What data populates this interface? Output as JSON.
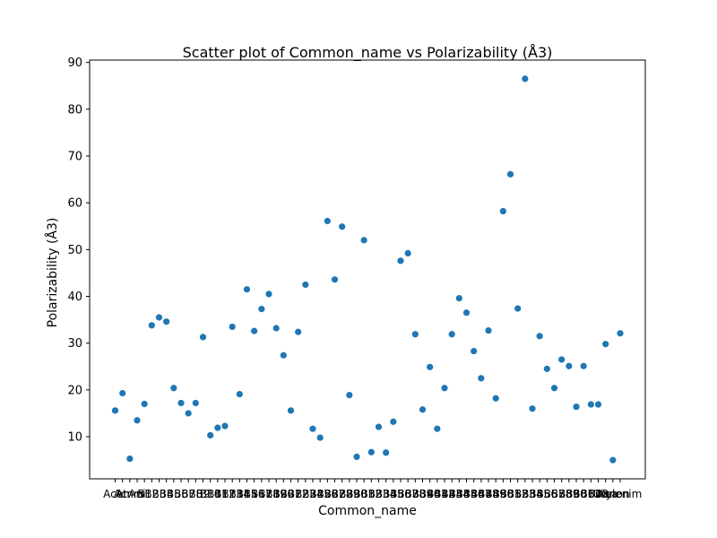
{
  "chart_data": {
    "type": "scatter",
    "title": "Scatter plot of Common_name vs Polarizability (Å3)",
    "xlabel": "Common_name",
    "ylabel": "Polarizability (Å3)",
    "ylim": [
      1.0,
      90.5
    ],
    "yticks": [
      10,
      20,
      30,
      40,
      50,
      60,
      70,
      80,
      90
    ],
    "grid": false,
    "marker_color": "#1f77b4",
    "x": [
      "Acet",
      "Acr",
      "Amm",
      "Ani",
      "B1",
      "B2",
      "B3",
      "B4",
      "B5",
      "B6",
      "B7",
      "B8",
      "B9",
      "B10",
      "B11",
      "B12",
      "B13",
      "B14",
      "B15",
      "B16",
      "B17",
      "B18",
      "B19",
      "B20",
      "B21",
      "B22",
      "B23",
      "B24",
      "B25",
      "B26",
      "B27",
      "B28",
      "B29",
      "B30",
      "B31",
      "B32",
      "B33",
      "B34",
      "B35",
      "B36",
      "B37",
      "B38",
      "B39",
      "B40",
      "B41",
      "B42",
      "B43",
      "B44",
      "B45",
      "B46",
      "B47",
      "B48",
      "B49",
      "B50",
      "B51",
      "B52",
      "B53",
      "B54",
      "B55",
      "B56",
      "B57",
      "B58",
      "B59",
      "B60",
      "B61",
      "B62",
      "B63",
      "Urea",
      "Xenon",
      "Xylenim"
    ],
    "y": [
      15.6,
      19.3,
      5.3,
      13.5,
      17.0,
      33.8,
      35.5,
      34.6,
      20.4,
      17.2,
      15.0,
      17.2,
      31.3,
      10.3,
      11.9,
      12.3,
      33.5,
      19.1,
      41.5,
      32.6,
      37.3,
      40.5,
      33.2,
      27.4,
      15.6,
      32.4,
      42.5,
      11.7,
      9.8,
      56.1,
      43.6,
      54.9,
      18.9,
      5.7,
      52.0,
      6.7,
      12.1,
      6.6,
      13.2,
      47.6,
      49.2,
      31.9,
      15.8,
      24.9,
      11.7,
      20.4,
      31.9,
      39.6,
      36.5,
      28.3,
      22.5,
      32.7,
      18.2,
      58.2,
      66.1,
      37.4,
      86.5,
      16.0,
      31.5,
      24.5,
      20.4,
      26.5,
      25.1,
      16.4,
      25.1,
      16.9,
      16.9,
      29.8,
      5.0,
      32.1
    ]
  }
}
